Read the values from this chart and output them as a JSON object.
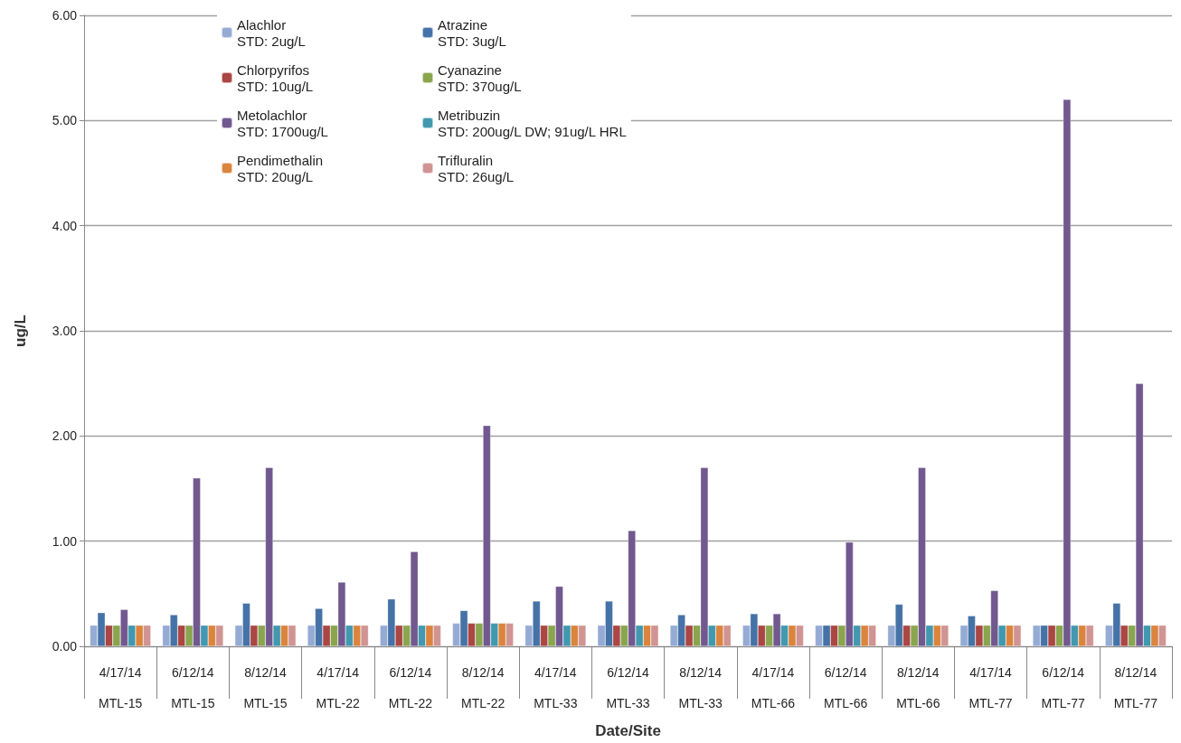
{
  "chart_data": {
    "type": "bar",
    "xlabel": "Date/Site",
    "ylabel": "ug/L",
    "categories": [
      "4/17/14\nMTL-15",
      "6/12/14\nMTL-15",
      "8/12/14\nMTL-15",
      "4/17/14\nMTL-22",
      "6/12/14\nMTL-22",
      "8/12/14\nMTL-22",
      "4/17/14\nMTL-33",
      "6/12/14\nMTL-33",
      "8/12/14\nMTL-33",
      "4/17/14\nMTL-66",
      "6/12/14\nMTL-66",
      "8/12/14\nMTL-66",
      "4/17/14\nMTL-77",
      "6/12/14\nMTL-77",
      "8/12/14\nMTL-77"
    ],
    "series": [
      {
        "name": "Alachlor\nSTD: 2ug/L",
        "color": "#95abd4",
        "values": [
          0.2,
          0.2,
          0.2,
          0.2,
          0.2,
          0.22,
          0.2,
          0.2,
          0.2,
          0.2,
          0.2,
          0.2,
          0.2,
          0.2,
          0.2
        ]
      },
      {
        "name": "Atrazine\nSTD: 3ug/L",
        "color": "#4572a7",
        "values": [
          0.32,
          0.3,
          0.41,
          0.36,
          0.45,
          0.34,
          0.43,
          0.43,
          0.3,
          0.31,
          0.2,
          0.4,
          0.29,
          0.2,
          0.41
        ]
      },
      {
        "name": "Chlorpyrifos\nSTD: 10ug/L",
        "color": "#aa4643",
        "values": [
          0.2,
          0.2,
          0.2,
          0.2,
          0.2,
          0.22,
          0.2,
          0.2,
          0.2,
          0.2,
          0.2,
          0.2,
          0.2,
          0.2,
          0.2
        ]
      },
      {
        "name": "Cyanazine\nSTD: 370ug/L",
        "color": "#89a54e",
        "values": [
          0.2,
          0.2,
          0.2,
          0.2,
          0.2,
          0.22,
          0.2,
          0.2,
          0.2,
          0.2,
          0.2,
          0.2,
          0.2,
          0.2,
          0.2
        ]
      },
      {
        "name": "Metolachlor\nSTD: 1700ug/L",
        "color": "#71588f",
        "values": [
          0.35,
          1.6,
          1.7,
          0.61,
          0.9,
          2.1,
          0.57,
          1.1,
          1.7,
          0.31,
          0.99,
          1.7,
          0.53,
          5.2,
          2.5
        ]
      },
      {
        "name": "Metribuzin\nSTD: 200ug/L DW; 91ug/L HRL",
        "color": "#4198af",
        "values": [
          0.2,
          0.2,
          0.2,
          0.2,
          0.2,
          0.22,
          0.2,
          0.2,
          0.2,
          0.2,
          0.2,
          0.2,
          0.2,
          0.2,
          0.2
        ]
      },
      {
        "name": "Pendimethalin\nSTD: 20ug/L",
        "color": "#db843d",
        "values": [
          0.2,
          0.2,
          0.2,
          0.2,
          0.2,
          0.22,
          0.2,
          0.2,
          0.2,
          0.2,
          0.2,
          0.2,
          0.2,
          0.2,
          0.2
        ]
      },
      {
        "name": "Trifluralin\nSTD: 26ug/L",
        "color": "#d09493",
        "values": [
          0.2,
          0.2,
          0.2,
          0.2,
          0.2,
          0.22,
          0.2,
          0.2,
          0.2,
          0.2,
          0.2,
          0.2,
          0.2,
          0.2,
          0.2
        ]
      }
    ],
    "ylim": [
      0,
      6
    ],
    "yticks": [
      {
        "value": 0,
        "label": "0.00"
      },
      {
        "value": 1,
        "label": "1.00"
      },
      {
        "value": 2,
        "label": "2.00"
      },
      {
        "value": 3,
        "label": "3.00"
      },
      {
        "value": 4,
        "label": "4.00"
      },
      {
        "value": 5,
        "label": "5.00"
      },
      {
        "value": 6,
        "label": "6.00"
      }
    ],
    "grid": "y",
    "legend": "top left"
  }
}
